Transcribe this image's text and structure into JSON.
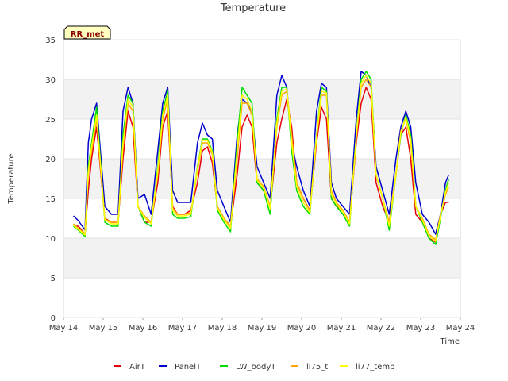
{
  "chart_data": {
    "type": "line",
    "title": "Temperature",
    "xlabel": "Time",
    "ylabel": "Temperature",
    "site_badge": "RR_met",
    "ylim": [
      0,
      35
    ],
    "yticks": [
      0,
      5,
      10,
      15,
      20,
      25,
      30,
      35
    ],
    "xlim": [
      "2000-05-14",
      "2000-05-24"
    ],
    "xticks": [
      "May 14",
      "May 15",
      "May 16",
      "May 17",
      "May 18",
      "May 19",
      "May 20",
      "May 21",
      "May 22",
      "May 23",
      "May 24"
    ],
    "grid": "horizontal alternating bands",
    "legend_position": "bottom",
    "series": [
      {
        "name": "AirT",
        "color": "#e8000b",
        "x": [
          "2000-05-14T06:00",
          "2000-05-14T09:00",
          "2000-05-14T13:00",
          "2000-05-14T15:00",
          "2000-05-14T17:00",
          "2000-05-14T20:00",
          "2000-05-15T01:00",
          "2000-05-15T05:00",
          "2000-05-15T09:00",
          "2000-05-15T12:00",
          "2000-05-15T15:00",
          "2000-05-15T18:00",
          "2000-05-15T21:00",
          "2000-05-16T01:00",
          "2000-05-16T05:00",
          "2000-05-16T09:00",
          "2000-05-16T12:00",
          "2000-05-16T15:00",
          "2000-05-16T18:00",
          "2000-05-16T21:00",
          "2000-05-17T01:00",
          "2000-05-17T05:00",
          "2000-05-17T09:00",
          "2000-05-17T12:00",
          "2000-05-17T15:00",
          "2000-05-17T18:00",
          "2000-05-17T21:00",
          "2000-05-18T01:00",
          "2000-05-18T05:00",
          "2000-05-18T09:00",
          "2000-05-18T12:00",
          "2000-05-18T15:00",
          "2000-05-18T18:00",
          "2000-05-18T21:00",
          "2000-05-19T01:00",
          "2000-05-19T05:00",
          "2000-05-19T09:00",
          "2000-05-19T12:00",
          "2000-05-19T15:00",
          "2000-05-19T18:00",
          "2000-05-19T21:00",
          "2000-05-20T01:00",
          "2000-05-20T05:00",
          "2000-05-20T09:00",
          "2000-05-20T12:00",
          "2000-05-20T15:00",
          "2000-05-20T18:00",
          "2000-05-20T21:00",
          "2000-05-21T01:00",
          "2000-05-21T05:00",
          "2000-05-21T09:00",
          "2000-05-21T12:00",
          "2000-05-21T15:00",
          "2000-05-21T18:00",
          "2000-05-21T21:00",
          "2000-05-22T01:00",
          "2000-05-22T05:00",
          "2000-05-22T09:00",
          "2000-05-22T12:00",
          "2000-05-22T15:00",
          "2000-05-22T18:00",
          "2000-05-22T21:00",
          "2000-05-23T01:00",
          "2000-05-23T05:00",
          "2000-05-23T09:00",
          "2000-05-23T12:00",
          "2000-05-23T15:00",
          "2000-05-23T17:00"
        ],
        "y": [
          11.5,
          11.5,
          10.5,
          16,
          20,
          24,
          12.5,
          12,
          12,
          20,
          26,
          24,
          14,
          12,
          12,
          17,
          24,
          26,
          14,
          13,
          13,
          13.5,
          17,
          21,
          21.5,
          19.5,
          14,
          12.5,
          11.5,
          18,
          24,
          25.5,
          24,
          17,
          16,
          14,
          22,
          25,
          27.5,
          24,
          17,
          15,
          13.5,
          22,
          26.5,
          25,
          15,
          14,
          13.5,
          12,
          22,
          27,
          29,
          27.5,
          17,
          14,
          12,
          18,
          23,
          24,
          20,
          13,
          12,
          10,
          9.5,
          13,
          14.5,
          14.5
        ]
      },
      {
        "name": "PanelT",
        "color": "#0000cd",
        "x": [
          "2000-05-14T06:00",
          "2000-05-14T09:00",
          "2000-05-14T13:00",
          "2000-05-14T15:00",
          "2000-05-14T17:00",
          "2000-05-14T20:00",
          "2000-05-15T01:00",
          "2000-05-15T05:00",
          "2000-05-15T09:00",
          "2000-05-15T12:00",
          "2000-05-15T15:00",
          "2000-05-15T18:00",
          "2000-05-15T21:00",
          "2000-05-16T01:00",
          "2000-05-16T05:00",
          "2000-05-16T09:00",
          "2000-05-16T12:00",
          "2000-05-16T15:00",
          "2000-05-16T18:00",
          "2000-05-16T21:00",
          "2000-05-17T01:00",
          "2000-05-17T05:00",
          "2000-05-17T09:00",
          "2000-05-17T12:00",
          "2000-05-17T15:00",
          "2000-05-17T18:00",
          "2000-05-17T21:00",
          "2000-05-18T01:00",
          "2000-05-18T05:00",
          "2000-05-18T09:00",
          "2000-05-18T12:00",
          "2000-05-18T15:00",
          "2000-05-18T18:00",
          "2000-05-18T21:00",
          "2000-05-19T01:00",
          "2000-05-19T05:00",
          "2000-05-19T09:00",
          "2000-05-19T12:00",
          "2000-05-19T15:00",
          "2000-05-19T18:00",
          "2000-05-19T21:00",
          "2000-05-20T01:00",
          "2000-05-20T05:00",
          "2000-05-20T09:00",
          "2000-05-20T12:00",
          "2000-05-20T15:00",
          "2000-05-20T18:00",
          "2000-05-20T21:00",
          "2000-05-21T01:00",
          "2000-05-21T05:00",
          "2000-05-21T09:00",
          "2000-05-21T12:00",
          "2000-05-21T15:00",
          "2000-05-21T18:00",
          "2000-05-21T21:00",
          "2000-05-22T01:00",
          "2000-05-22T05:00",
          "2000-05-22T09:00",
          "2000-05-22T12:00",
          "2000-05-22T15:00",
          "2000-05-22T18:00",
          "2000-05-22T21:00",
          "2000-05-23T01:00",
          "2000-05-23T05:00",
          "2000-05-23T09:00",
          "2000-05-23T12:00",
          "2000-05-23T15:00",
          "2000-05-23T17:00"
        ],
        "y": [
          12.8,
          12.2,
          11,
          22,
          25,
          27,
          14,
          13,
          13,
          26,
          29,
          27,
          15,
          15.5,
          13,
          21,
          27,
          29,
          16,
          14.5,
          14.5,
          14.5,
          22,
          24.5,
          23,
          22.5,
          16,
          14,
          12,
          23,
          27.5,
          27,
          26,
          19,
          17,
          15,
          28,
          30.5,
          29,
          22,
          19,
          16,
          14,
          26,
          29.5,
          29,
          17,
          15,
          14,
          13,
          25,
          31,
          30.5,
          29,
          19,
          16,
          13,
          20,
          24,
          26,
          24,
          17,
          13,
          12,
          10.5,
          13,
          17,
          18
        ]
      },
      {
        "name": "LW_bodyT",
        "color": "#00dd00",
        "x": [
          "2000-05-14T06:00",
          "2000-05-14T09:00",
          "2000-05-14T13:00",
          "2000-05-14T15:00",
          "2000-05-14T17:00",
          "2000-05-14T20:00",
          "2000-05-15T01:00",
          "2000-05-15T05:00",
          "2000-05-15T09:00",
          "2000-05-15T12:00",
          "2000-05-15T15:00",
          "2000-05-15T18:00",
          "2000-05-15T21:00",
          "2000-05-16T01:00",
          "2000-05-16T05:00",
          "2000-05-16T09:00",
          "2000-05-16T12:00",
          "2000-05-16T15:00",
          "2000-05-16T18:00",
          "2000-05-16T21:00",
          "2000-05-17T01:00",
          "2000-05-17T05:00",
          "2000-05-17T09:00",
          "2000-05-17T12:00",
          "2000-05-17T15:00",
          "2000-05-17T18:00",
          "2000-05-17T21:00",
          "2000-05-18T01:00",
          "2000-05-18T05:00",
          "2000-05-18T09:00",
          "2000-05-18T12:00",
          "2000-05-18T15:00",
          "2000-05-18T18:00",
          "2000-05-18T21:00",
          "2000-05-19T01:00",
          "2000-05-19T05:00",
          "2000-05-19T09:00",
          "2000-05-19T12:00",
          "2000-05-19T15:00",
          "2000-05-19T18:00",
          "2000-05-19T21:00",
          "2000-05-20T01:00",
          "2000-05-20T05:00",
          "2000-05-20T09:00",
          "2000-05-20T12:00",
          "2000-05-20T15:00",
          "2000-05-20T18:00",
          "2000-05-20T21:00",
          "2000-05-21T01:00",
          "2000-05-21T05:00",
          "2000-05-21T09:00",
          "2000-05-21T12:00",
          "2000-05-21T15:00",
          "2000-05-21T18:00",
          "2000-05-21T21:00",
          "2000-05-22T01:00",
          "2000-05-22T05:00",
          "2000-05-22T09:00",
          "2000-05-22T12:00",
          "2000-05-22T15:00",
          "2000-05-22T18:00",
          "2000-05-22T21:00",
          "2000-05-23T01:00",
          "2000-05-23T05:00",
          "2000-05-23T09:00",
          "2000-05-23T12:00",
          "2000-05-23T15:00",
          "2000-05-23T17:00"
        ],
        "y": [
          11.5,
          11,
          10.2,
          19,
          22,
          26.5,
          12,
          11.5,
          11.5,
          23,
          28,
          27,
          14,
          12,
          11.5,
          19,
          26,
          28.5,
          13,
          12.5,
          12.5,
          12.7,
          19,
          22.5,
          22.5,
          21,
          13.5,
          12,
          10.8,
          22,
          29,
          28,
          27,
          17,
          16,
          13,
          25,
          29,
          29,
          21,
          16,
          14,
          13,
          23,
          29,
          28.5,
          15,
          14,
          13,
          11.5,
          23,
          30,
          31,
          30,
          18,
          15,
          11,
          18,
          23,
          25.5,
          23,
          14,
          12,
          10,
          9.2,
          12.5,
          16,
          17.5
        ]
      },
      {
        "name": "li75_t",
        "color": "#ffa500",
        "x": [
          "2000-05-14T06:00",
          "2000-05-14T09:00",
          "2000-05-14T13:00",
          "2000-05-14T15:00",
          "2000-05-14T17:00",
          "2000-05-14T20:00",
          "2000-05-15T01:00",
          "2000-05-15T05:00",
          "2000-05-15T09:00",
          "2000-05-15T12:00",
          "2000-05-15T15:00",
          "2000-05-15T18:00",
          "2000-05-15T21:00",
          "2000-05-16T01:00",
          "2000-05-16T05:00",
          "2000-05-16T09:00",
          "2000-05-16T12:00",
          "2000-05-16T15:00",
          "2000-05-16T18:00",
          "2000-05-16T21:00",
          "2000-05-17T01:00",
          "2000-05-17T05:00",
          "2000-05-17T09:00",
          "2000-05-17T12:00",
          "2000-05-17T15:00",
          "2000-05-17T18:00",
          "2000-05-17T21:00",
          "2000-05-18T01:00",
          "2000-05-18T05:00",
          "2000-05-18T09:00",
          "2000-05-18T12:00",
          "2000-05-18T15:00",
          "2000-05-18T18:00",
          "2000-05-18T21:00",
          "2000-05-19T01:00",
          "2000-05-19T05:00",
          "2000-05-19T09:00",
          "2000-05-19T12:00",
          "2000-05-19T15:00",
          "2000-05-19T18:00",
          "2000-05-19T21:00",
          "2000-05-20T01:00",
          "2000-05-20T05:00",
          "2000-05-20T09:00",
          "2000-05-20T12:00",
          "2000-05-20T15:00",
          "2000-05-20T18:00",
          "2000-05-20T21:00",
          "2000-05-21T01:00",
          "2000-05-21T05:00",
          "2000-05-21T09:00",
          "2000-05-21T12:00",
          "2000-05-21T15:00",
          "2000-05-21T18:00",
          "2000-05-21T21:00",
          "2000-05-22T01:00",
          "2000-05-22T05:00",
          "2000-05-22T09:00",
          "2000-05-22T12:00",
          "2000-05-22T15:00",
          "2000-05-22T18:00",
          "2000-05-22T21:00",
          "2000-05-23T01:00",
          "2000-05-23T05:00",
          "2000-05-23T09:00",
          "2000-05-23T12:00",
          "2000-05-23T15:00",
          "2000-05-23T17:00"
        ],
        "y": [
          11.8,
          11.2,
          10.6,
          18,
          21,
          25,
          12.4,
          12,
          12,
          21.5,
          27,
          26,
          14,
          12.8,
          12,
          18,
          25,
          27.5,
          13.8,
          13,
          13,
          13.2,
          18.5,
          22,
          22,
          20.5,
          14,
          12.5,
          11.5,
          20,
          27,
          27,
          25.5,
          17.5,
          16.5,
          14,
          24,
          28,
          28.5,
          23,
          17,
          15,
          13.5,
          22.5,
          28,
          28,
          16,
          14.5,
          13.5,
          12,
          22.5,
          29,
          30,
          29,
          18,
          15,
          12,
          18,
          23.5,
          25,
          22,
          14,
          12.5,
          10.5,
          9.8,
          13,
          15.5,
          16.5
        ]
      },
      {
        "name": "li77_temp",
        "color": "#ffff00",
        "x": [
          "2000-05-14T06:00",
          "2000-05-14T09:00",
          "2000-05-14T13:00",
          "2000-05-14T15:00",
          "2000-05-14T17:00",
          "2000-05-14T20:00",
          "2000-05-15T01:00",
          "2000-05-15T05:00",
          "2000-05-15T09:00",
          "2000-05-15T12:00",
          "2000-05-15T15:00",
          "2000-05-15T18:00",
          "2000-05-15T21:00",
          "2000-05-16T01:00",
          "2000-05-16T05:00",
          "2000-05-16T09:00",
          "2000-05-16T12:00",
          "2000-05-16T15:00",
          "2000-05-16T18:00",
          "2000-05-16T21:00",
          "2000-05-17T01:00",
          "2000-05-17T05:00",
          "2000-05-17T09:00",
          "2000-05-17T12:00",
          "2000-05-17T15:00",
          "2000-05-17T18:00",
          "2000-05-17T21:00",
          "2000-05-18T01:00",
          "2000-05-18T05:00",
          "2000-05-18T09:00",
          "2000-05-18T12:00",
          "2000-05-18T15:00",
          "2000-05-18T18:00",
          "2000-05-18T21:00",
          "2000-05-19T01:00",
          "2000-05-19T05:00",
          "2000-05-19T09:00",
          "2000-05-19T12:00",
          "2000-05-19T15:00",
          "2000-05-19T18:00",
          "2000-05-19T21:00",
          "2000-05-20T01:00",
          "2000-05-20T05:00",
          "2000-05-20T09:00",
          "2000-05-20T12:00",
          "2000-05-20T15:00",
          "2000-05-20T18:00",
          "2000-05-20T21:00",
          "2000-05-21T01:00",
          "2000-05-21T05:00",
          "2000-05-21T09:00",
          "2000-05-21T12:00",
          "2000-05-21T15:00",
          "2000-05-21T18:00",
          "2000-05-21T21:00",
          "2000-05-22T01:00",
          "2000-05-22T05:00",
          "2000-05-22T09:00",
          "2000-05-22T12:00",
          "2000-05-22T15:00",
          "2000-05-22T18:00",
          "2000-05-22T21:00",
          "2000-05-23T01:00",
          "2000-05-23T05:00",
          "2000-05-23T09:00",
          "2000-05-23T12:00",
          "2000-05-23T15:00",
          "2000-05-23T17:00"
        ],
        "y": [
          11.6,
          11.1,
          10.4,
          18.5,
          21.5,
          25.5,
          12.3,
          11.8,
          11.8,
          22,
          27.5,
          26.5,
          13.9,
          12.6,
          11.8,
          18.5,
          25.5,
          28,
          13.5,
          12.8,
          12.8,
          13,
          18.8,
          22.3,
          22.3,
          20.8,
          13.8,
          12.3,
          11.2,
          21,
          28,
          27.5,
          26,
          17.3,
          16.3,
          13.7,
          24.5,
          28.5,
          28.8,
          22,
          16.5,
          14.5,
          13.2,
          22.8,
          28.5,
          28.3,
          15.5,
          14.3,
          13.3,
          11.8,
          22.8,
          29.5,
          30.5,
          29.5,
          18,
          15,
          11.5,
          18,
          23.3,
          25.2,
          22.5,
          14,
          12.3,
          10.3,
          9.6,
          12.8,
          15.8,
          17
        ]
      }
    ]
  }
}
